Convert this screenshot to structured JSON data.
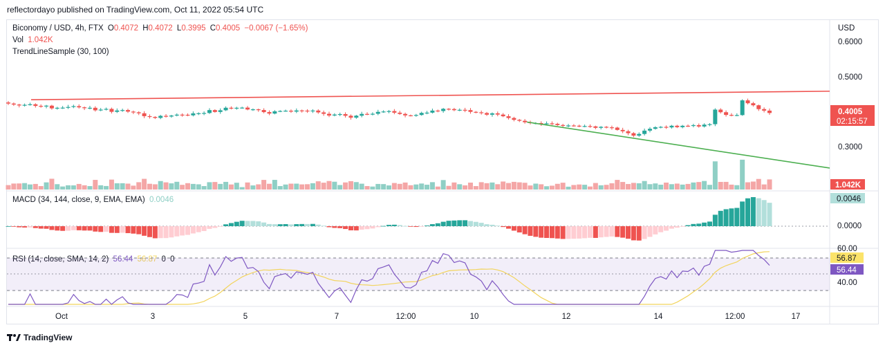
{
  "header": {
    "published": "reflectordayo published on TradingView.com, Oct 11, 2022 05:54 UTC"
  },
  "price_legend": {
    "symbol": "Biconomy / USD, 4h, FTX",
    "o_label": "O",
    "o": "0.4072",
    "h_label": "H",
    "h": "0.4072",
    "l_label": "L",
    "l": "0.3995",
    "c_label": "C",
    "c": "0.4005",
    "change": "−0.0067 (−1.65%)",
    "vol_label": "Vol",
    "vol": "1.042K",
    "indicator": "TrendLineSample (30, 100)"
  },
  "macd_legend": {
    "label": "MACD (34, 144, close, 9, EMA, EMA)",
    "value": "0.0046"
  },
  "rsi_legend": {
    "label": "RSI (14, close, SMA, 14, 2)",
    "v1": "56.44",
    "v2": "56.87",
    "v3": "0",
    "v4": "0"
  },
  "axis": {
    "currency": "USD",
    "price_ticks": [
      "0.6000",
      "0.5000",
      "0.3000"
    ],
    "price_badge": "0.4005",
    "countdown": "02:15:57",
    "vol_badge": "1.042K",
    "macd_ticks": [
      "0.0000"
    ],
    "macd_badge": "0.0046",
    "rsi_ticks": [
      "60.00",
      "40.00"
    ],
    "rsi_badge_1": "56.87",
    "rsi_badge_2": "56.44",
    "time_ticks": [
      "Oct",
      "3",
      "5",
      "7",
      "12:00",
      "10",
      "12",
      "14",
      "12:00",
      "17"
    ]
  },
  "colors": {
    "up": "#26a69a",
    "down": "#ef5350",
    "upVol": "#8fcfc5",
    "downVol": "#f4a6a6",
    "trendUp": "#ef5350",
    "trendDown": "#4caf50",
    "rsi": "#7e57c2",
    "rsiMa": "#f2d45c"
  },
  "footer": {
    "brand": "TradingView"
  },
  "chart_data": {
    "type": "candlestick",
    "symbol": "Biconomy / USD",
    "interval": "4h",
    "price_range": [
      0.2,
      0.62
    ],
    "close_series": [
      0.4272,
      0.4243,
      0.4218,
      0.4236,
      0.4251,
      0.4205,
      0.4195,
      0.4212,
      0.4136,
      0.4152,
      0.4156,
      0.4175,
      0.4198,
      0.4165,
      0.4146,
      0.4152,
      0.4081,
      0.4101,
      0.4121,
      0.4038,
      0.4076,
      0.4088,
      0.4044,
      0.4024,
      0.3997,
      0.3916,
      0.3894,
      0.3867,
      0.3924,
      0.3906,
      0.3933,
      0.3958,
      0.3955,
      0.3939,
      0.3994,
      0.3998,
      0.4005,
      0.4087,
      0.4035,
      0.4082,
      0.4153,
      0.4129,
      0.4152,
      0.4157,
      0.4104,
      0.4109,
      0.4089,
      0.403,
      0.3989,
      0.4052,
      0.4062,
      0.4069,
      0.4044,
      0.4077,
      0.4072,
      0.4065,
      0.4074,
      0.4022,
      0.3982,
      0.3934,
      0.3961,
      0.3974,
      0.3927,
      0.3874,
      0.3929,
      0.3979,
      0.397,
      0.3983,
      0.4037,
      0.4047,
      0.4059,
      0.4014,
      0.3979,
      0.3938,
      0.3935,
      0.3949,
      0.4008,
      0.4015,
      0.4073,
      0.4061,
      0.4123,
      0.4116,
      0.4085,
      0.4095,
      0.4087,
      0.4037,
      0.4024,
      0.4004,
      0.3957,
      0.3995,
      0.3961,
      0.3913,
      0.3864,
      0.3812,
      0.3785,
      0.3745,
      0.3719,
      0.3719,
      0.3698,
      0.3712,
      0.37,
      0.3665,
      0.3643,
      0.3652,
      0.3645,
      0.3632,
      0.3636,
      0.3627,
      0.3586,
      0.3614,
      0.3601,
      0.3592,
      0.3527,
      0.3489,
      0.3435,
      0.3366,
      0.3413,
      0.3507,
      0.3559,
      0.3602,
      0.3613,
      0.3598,
      0.3645,
      0.3605,
      0.3644,
      0.3642,
      0.3662,
      0.3624,
      0.3676,
      0.3689,
      0.4101,
      0.4027,
      0.3951,
      0.3936,
      0.3946,
      0.4362,
      0.4281,
      0.4223,
      0.4115,
      0.4072,
      0.4005
    ],
    "trendlines": [
      {
        "from_price": 0.438,
        "to_price": 0.462,
        "color": "red"
      },
      {
        "from_price": 0.375,
        "to_price": 0.245,
        "color": "green"
      }
    ],
    "volume_last": "1.042K",
    "macd_last": 0.0046,
    "rsi_last": 56.44,
    "rsi_ma_last": 56.87,
    "x_ticks": [
      "Oct",
      "3",
      "5",
      "7",
      "12:00",
      "10",
      "12",
      "14",
      "12:00",
      "17"
    ]
  }
}
